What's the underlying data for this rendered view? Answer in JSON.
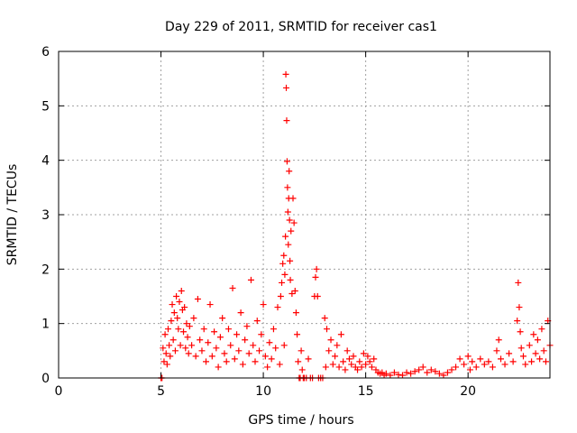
{
  "chart_data": {
    "type": "scatter",
    "title": "Day 229 of 2011, SRMTID for receiver cas1",
    "xlabel": "GPS time / hours",
    "ylabel": "SRMTID / TECUs",
    "xlim": [
      0,
      24
    ],
    "ylim": [
      0,
      6
    ],
    "x_ticks": [
      0,
      5,
      10,
      15,
      20
    ],
    "y_ticks": [
      0,
      1,
      2,
      3,
      4,
      5,
      6
    ],
    "grid": true,
    "marker": "+",
    "marker_color": "#ff0000",
    "x_tick_labels": [
      "0",
      "5",
      "10",
      "15",
      "20"
    ],
    "y_tick_labels": [
      "0",
      "1",
      "2",
      "3",
      "4",
      "5",
      "6"
    ],
    "series": [
      {
        "name": "SRMTID",
        "points": [
          [
            5.0,
            0.0
          ],
          [
            5.05,
            0.0
          ],
          [
            5.1,
            0.55
          ],
          [
            5.15,
            0.3
          ],
          [
            5.2,
            0.8
          ],
          [
            5.25,
            0.45
          ],
          [
            5.3,
            0.25
          ],
          [
            5.35,
            0.9
          ],
          [
            5.4,
            0.6
          ],
          [
            5.45,
            0.4
          ],
          [
            5.5,
            1.05
          ],
          [
            5.55,
            1.35
          ],
          [
            5.6,
            0.7
          ],
          [
            5.65,
            1.2
          ],
          [
            5.7,
            0.5
          ],
          [
            5.75,
            1.5
          ],
          [
            5.8,
            1.1
          ],
          [
            5.85,
            0.9
          ],
          [
            5.9,
            1.4
          ],
          [
            5.95,
            0.6
          ],
          [
            6.0,
            1.6
          ],
          [
            6.05,
            1.25
          ],
          [
            6.1,
            0.85
          ],
          [
            6.15,
            1.3
          ],
          [
            6.2,
            0.55
          ],
          [
            6.25,
            1.0
          ],
          [
            6.3,
            0.75
          ],
          [
            6.35,
            0.45
          ],
          [
            6.4,
            0.95
          ],
          [
            6.5,
            0.6
          ],
          [
            6.6,
            1.1
          ],
          [
            6.7,
            0.4
          ],
          [
            6.8,
            1.45
          ],
          [
            6.9,
            0.7
          ],
          [
            7.0,
            0.5
          ],
          [
            7.1,
            0.9
          ],
          [
            7.2,
            0.3
          ],
          [
            7.3,
            0.65
          ],
          [
            7.4,
            1.35
          ],
          [
            7.5,
            0.4
          ],
          [
            7.6,
            0.85
          ],
          [
            7.7,
            0.55
          ],
          [
            7.8,
            0.2
          ],
          [
            7.9,
            0.75
          ],
          [
            8.0,
            1.1
          ],
          [
            8.1,
            0.45
          ],
          [
            8.2,
            0.3
          ],
          [
            8.3,
            0.9
          ],
          [
            8.4,
            0.6
          ],
          [
            8.5,
            1.65
          ],
          [
            8.6,
            0.35
          ],
          [
            8.7,
            0.8
          ],
          [
            8.8,
            0.5
          ],
          [
            8.9,
            1.2
          ],
          [
            9.0,
            0.25
          ],
          [
            9.1,
            0.7
          ],
          [
            9.2,
            0.95
          ],
          [
            9.3,
            0.45
          ],
          [
            9.4,
            1.8
          ],
          [
            9.5,
            0.6
          ],
          [
            9.6,
            0.3
          ],
          [
            9.7,
            1.05
          ],
          [
            9.8,
            0.5
          ],
          [
            9.9,
            0.8
          ],
          [
            10.0,
            1.35
          ],
          [
            10.1,
            0.4
          ],
          [
            10.2,
            0.2
          ],
          [
            10.3,
            0.65
          ],
          [
            10.4,
            0.35
          ],
          [
            10.5,
            0.9
          ],
          [
            10.6,
            0.55
          ],
          [
            10.7,
            1.3
          ],
          [
            10.8,
            0.25
          ],
          [
            10.85,
            1.5
          ],
          [
            10.9,
            1.75
          ],
          [
            10.95,
            2.1
          ],
          [
            11.0,
            2.25
          ],
          [
            11.02,
            0.6
          ],
          [
            11.05,
            1.9
          ],
          [
            11.08,
            2.6
          ],
          [
            11.1,
            5.58
          ],
          [
            11.12,
            5.33
          ],
          [
            11.14,
            4.73
          ],
          [
            11.16,
            3.98
          ],
          [
            11.18,
            3.5
          ],
          [
            11.2,
            3.05
          ],
          [
            11.22,
            2.45
          ],
          [
            11.24,
            3.3
          ],
          [
            11.26,
            3.8
          ],
          [
            11.28,
            2.9
          ],
          [
            11.3,
            2.15
          ],
          [
            11.32,
            1.8
          ],
          [
            11.35,
            2.7
          ],
          [
            11.4,
            1.55
          ],
          [
            11.45,
            3.3
          ],
          [
            11.5,
            2.85
          ],
          [
            11.55,
            1.6
          ],
          [
            11.6,
            1.2
          ],
          [
            11.65,
            0.8
          ],
          [
            11.7,
            0.3
          ],
          [
            11.75,
            0.0
          ],
          [
            11.8,
            0.0
          ],
          [
            11.85,
            0.5
          ],
          [
            11.9,
            0.15
          ],
          [
            11.95,
            0.0
          ],
          [
            12.0,
            0.0
          ],
          [
            12.1,
            0.0
          ],
          [
            12.2,
            0.35
          ],
          [
            12.3,
            0.0
          ],
          [
            12.4,
            0.0
          ],
          [
            12.5,
            1.5
          ],
          [
            12.55,
            1.85
          ],
          [
            12.6,
            2.0
          ],
          [
            12.65,
            1.5
          ],
          [
            12.7,
            0.0
          ],
          [
            12.8,
            0.0
          ],
          [
            12.9,
            0.0
          ],
          [
            13.0,
            1.1
          ],
          [
            13.05,
            0.2
          ],
          [
            13.1,
            0.9
          ],
          [
            13.2,
            0.5
          ],
          [
            13.3,
            0.7
          ],
          [
            13.4,
            0.25
          ],
          [
            13.5,
            0.4
          ],
          [
            13.6,
            0.6
          ],
          [
            13.7,
            0.2
          ],
          [
            13.8,
            0.8
          ],
          [
            13.9,
            0.3
          ],
          [
            14.0,
            0.15
          ],
          [
            14.1,
            0.5
          ],
          [
            14.2,
            0.35
          ],
          [
            14.3,
            0.25
          ],
          [
            14.4,
            0.4
          ],
          [
            14.5,
            0.2
          ],
          [
            14.6,
            0.15
          ],
          [
            14.7,
            0.3
          ],
          [
            14.8,
            0.2
          ],
          [
            14.9,
            0.45
          ],
          [
            15.0,
            0.25
          ],
          [
            15.1,
            0.4
          ],
          [
            15.2,
            0.3
          ],
          [
            15.3,
            0.2
          ],
          [
            15.4,
            0.35
          ],
          [
            15.5,
            0.15
          ],
          [
            15.6,
            0.1
          ],
          [
            15.7,
            0.08
          ],
          [
            15.8,
            0.1
          ],
          [
            15.9,
            0.05
          ],
          [
            16.0,
            0.08
          ],
          [
            16.2,
            0.05
          ],
          [
            16.4,
            0.1
          ],
          [
            16.6,
            0.06
          ],
          [
            16.8,
            0.05
          ],
          [
            17.0,
            0.1
          ],
          [
            17.2,
            0.08
          ],
          [
            17.4,
            0.12
          ],
          [
            17.6,
            0.15
          ],
          [
            17.8,
            0.2
          ],
          [
            18.0,
            0.1
          ],
          [
            18.2,
            0.15
          ],
          [
            18.4,
            0.12
          ],
          [
            18.6,
            0.08
          ],
          [
            18.8,
            0.05
          ],
          [
            19.0,
            0.1
          ],
          [
            19.2,
            0.15
          ],
          [
            19.4,
            0.2
          ],
          [
            19.6,
            0.35
          ],
          [
            19.8,
            0.25
          ],
          [
            20.0,
            0.4
          ],
          [
            20.1,
            0.15
          ],
          [
            20.2,
            0.3
          ],
          [
            20.4,
            0.2
          ],
          [
            20.6,
            0.35
          ],
          [
            20.8,
            0.25
          ],
          [
            21.0,
            0.3
          ],
          [
            21.2,
            0.2
          ],
          [
            21.4,
            0.5
          ],
          [
            21.5,
            0.7
          ],
          [
            21.6,
            0.35
          ],
          [
            21.8,
            0.25
          ],
          [
            22.0,
            0.45
          ],
          [
            22.2,
            0.3
          ],
          [
            22.4,
            1.05
          ],
          [
            22.45,
            1.75
          ],
          [
            22.5,
            1.3
          ],
          [
            22.55,
            0.85
          ],
          [
            22.6,
            0.55
          ],
          [
            22.7,
            0.4
          ],
          [
            22.8,
            0.25
          ],
          [
            23.0,
            0.6
          ],
          [
            23.1,
            0.3
          ],
          [
            23.2,
            0.8
          ],
          [
            23.3,
            0.45
          ],
          [
            23.4,
            0.7
          ],
          [
            23.5,
            0.35
          ],
          [
            23.6,
            0.9
          ],
          [
            23.7,
            0.5
          ],
          [
            23.8,
            0.3
          ],
          [
            23.9,
            1.05
          ],
          [
            24.0,
            0.6
          ]
        ]
      }
    ]
  }
}
